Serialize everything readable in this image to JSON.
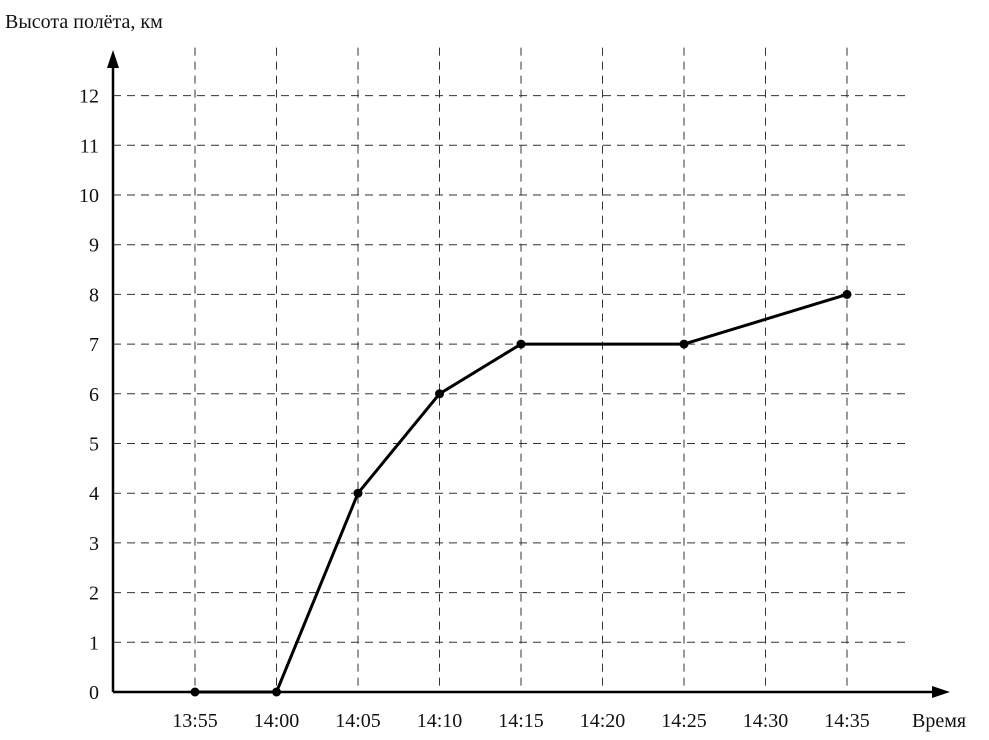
{
  "chart_data": {
    "type": "line",
    "ylabel": "Высота полёта, км",
    "xlabel": "Время",
    "categories": [
      "13:55",
      "14:00",
      "14:05",
      "14:10",
      "14:15",
      "14:20",
      "14:25",
      "14:30",
      "14:35"
    ],
    "y_ticks": [
      "0",
      "1",
      "2",
      "3",
      "4",
      "5",
      "6",
      "7",
      "8",
      "9",
      "10",
      "11",
      "12"
    ],
    "ylim": [
      0,
      12
    ],
    "grid": true,
    "series": [
      {
        "x": [
          "13:55",
          "14:00",
          "14:05",
          "14:10",
          "14:15",
          "14:25",
          "14:35"
        ],
        "values": [
          0,
          0,
          4,
          6,
          7,
          7,
          8
        ]
      }
    ]
  }
}
